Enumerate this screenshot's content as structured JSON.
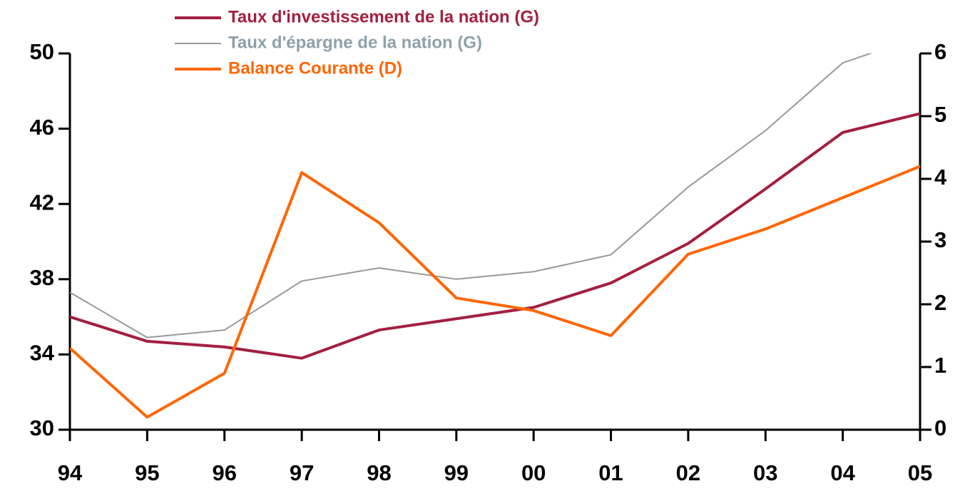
{
  "chart_data": {
    "type": "line",
    "categories": [
      "94",
      "95",
      "96",
      "97",
      "98",
      "99",
      "00",
      "01",
      "02",
      "03",
      "04",
      "05"
    ],
    "series": [
      {
        "name": "Taux d'investissement de la nation (G)",
        "color": "#a31f40",
        "width": 4,
        "text_color": "#a31f40",
        "values": [
          36.0,
          34.7,
          34.4,
          33.8,
          35.3,
          35.9,
          36.5,
          37.8,
          39.9,
          42.8,
          45.8,
          46.8
        ]
      },
      {
        "name": "Taux d'épargne de la nation (G)",
        "color": "#999999",
        "width": 2,
        "text_color": "#8fa0aa",
        "values": [
          37.3,
          34.9,
          35.3,
          37.9,
          38.6,
          38.0,
          38.4,
          39.3,
          42.9,
          45.9,
          49.5,
          50.9
        ]
      },
      {
        "name": "Balance Courante (D)",
        "color": "#ff6600",
        "width": 4,
        "text_color": "#ff6600",
        "axis": "y2",
        "values": [
          1.3,
          0.2,
          0.9,
          4.1,
          3.3,
          2.1,
          1.9,
          1.5,
          2.8,
          3.2,
          3.7,
          4.2
        ]
      }
    ],
    "ylim": [
      30,
      50
    ],
    "yticks": [
      30,
      34,
      38,
      42,
      46,
      50
    ],
    "y2lim": [
      0,
      6
    ],
    "y2ticks": [
      0,
      1,
      2,
      3,
      4,
      5,
      6
    ],
    "grid": false,
    "legend": "top"
  }
}
